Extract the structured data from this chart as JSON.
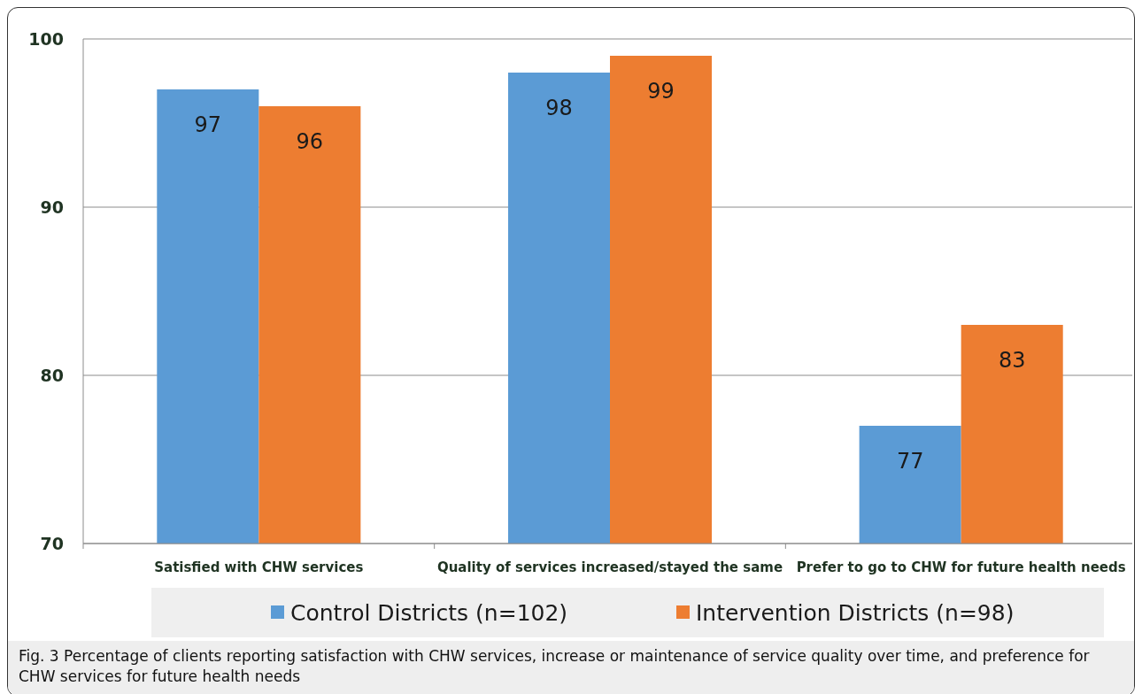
{
  "chart_data": {
    "type": "bar",
    "categories": [
      "Satisfied with CHW services",
      "Quality of services increased/stayed the same",
      "Prefer to go to CHW for future health needs"
    ],
    "series": [
      {
        "name": "Control Districts (n=102)",
        "color": "#5b9bd5",
        "values": [
          97,
          98,
          77
        ]
      },
      {
        "name": "Intervention Districts (n=98)",
        "color": "#ed7d31",
        "values": [
          96,
          99,
          83
        ]
      }
    ],
    "ylim": [
      70,
      100
    ],
    "yticks": [
      70,
      80,
      90,
      100
    ],
    "grid": "y",
    "legend": "bottom",
    "data_labels": true,
    "annotations": [
      "Fig. 3 Percentage of clients reporting satisfaction with CHW services, increase or maintenance of service quality over time, and preference for CHW services for future health needs"
    ]
  }
}
